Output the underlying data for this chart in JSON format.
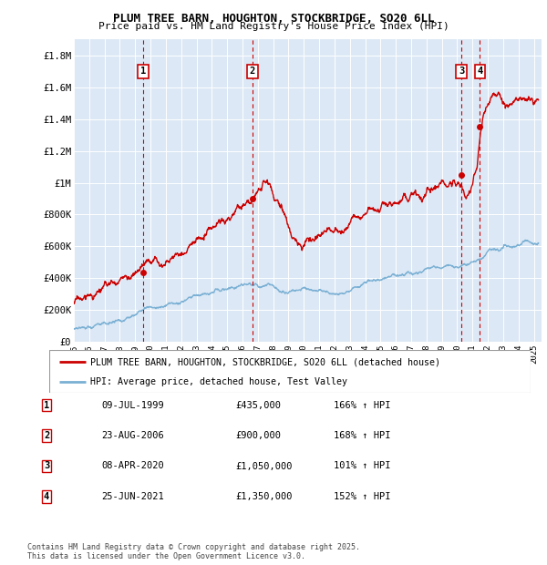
{
  "title1": "PLUM TREE BARN, HOUGHTON, STOCKBRIDGE, SO20 6LL",
  "title2": "Price paid vs. HM Land Registry's House Price Index (HPI)",
  "ylabel_ticks": [
    "£0",
    "£200K",
    "£400K",
    "£600K",
    "£800K",
    "£1M",
    "£1.2M",
    "£1.4M",
    "£1.6M",
    "£1.8M"
  ],
  "ylabel_values": [
    0,
    200000,
    400000,
    600000,
    800000,
    1000000,
    1200000,
    1400000,
    1600000,
    1800000
  ],
  "ylim": [
    0,
    1900000
  ],
  "xlim_start": 1995.0,
  "xlim_end": 2025.5,
  "background_color": "#ffffff",
  "plot_bg_color": "#dce8f5",
  "grid_color": "#ffffff",
  "red_line_color": "#cc0000",
  "blue_line_color": "#7ab0d4",
  "transaction_markers": [
    {
      "label": "1",
      "date_num": 1999.52,
      "price": 435000
    },
    {
      "label": "2",
      "date_num": 2006.64,
      "price": 900000
    },
    {
      "label": "3",
      "date_num": 2020.27,
      "price": 1050000
    },
    {
      "label": "4",
      "date_num": 2021.48,
      "price": 1350000
    }
  ],
  "legend_entries": [
    "PLUM TREE BARN, HOUGHTON, STOCKBRIDGE, SO20 6LL (detached house)",
    "HPI: Average price, detached house, Test Valley"
  ],
  "table_rows": [
    [
      "1",
      "09-JUL-1999",
      "£435,000",
      "166% ↑ HPI"
    ],
    [
      "2",
      "23-AUG-2006",
      "£900,000",
      "168% ↑ HPI"
    ],
    [
      "3",
      "08-APR-2020",
      "£1,050,000",
      "101% ↑ HPI"
    ],
    [
      "4",
      "25-JUN-2021",
      "£1,350,000",
      "152% ↑ HPI"
    ]
  ],
  "footnote": "Contains HM Land Registry data © Crown copyright and database right 2025.\nThis data is licensed under the Open Government Licence v3.0.",
  "xtick_years": [
    1995,
    1996,
    1997,
    1998,
    1999,
    2000,
    2001,
    2002,
    2003,
    2004,
    2005,
    2006,
    2007,
    2008,
    2009,
    2010,
    2011,
    2012,
    2013,
    2014,
    2015,
    2016,
    2017,
    2018,
    2019,
    2020,
    2021,
    2022,
    2023,
    2024,
    2025
  ]
}
